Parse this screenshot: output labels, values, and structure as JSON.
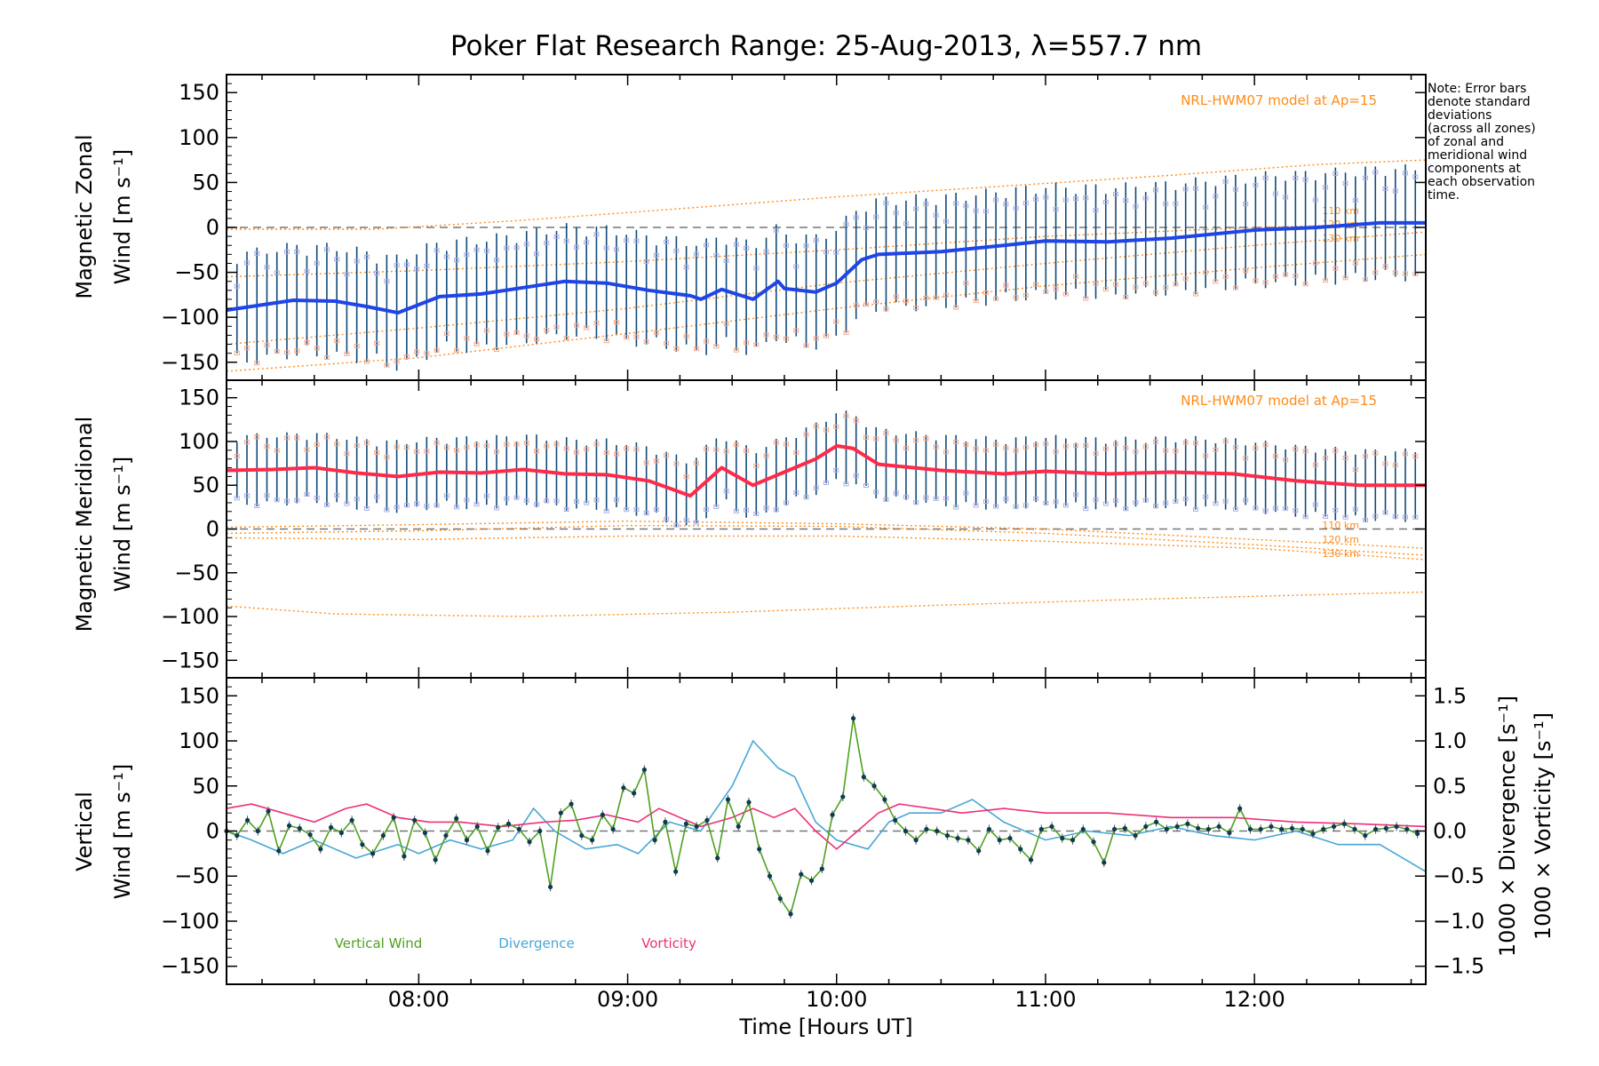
{
  "colors": {
    "zonal_mean": "#1f45e6",
    "meridional_mean": "#ff2a4a",
    "error_bar": "#124a78",
    "model": "#ff8c1a",
    "model_label": "#ff8c1a",
    "zone_scatter_high": "#f7a98d",
    "zone_scatter_low": "#a9aee8",
    "vertical": "#4ea020",
    "divergence": "#46a7d6",
    "vorticity": "#ef2f79",
    "zero_line": "#777777",
    "point": "#0d3b4f"
  },
  "chart_data": {
    "type": "line",
    "title": "Poker Flat Research Range: 25-Aug-2013, λ=557.7 nm",
    "xlabel": "Time [Hours UT]",
    "xlim": [
      7.08,
      12.82
    ],
    "xticks": [
      8,
      9,
      10,
      11,
      12
    ],
    "xtick_labels": [
      "08:00",
      "09:00",
      "10:00",
      "11:00",
      "12:00"
    ],
    "note": [
      "Note: Error bars",
      "denote standard",
      "deviations",
      "(across all zones)",
      "of zonal and",
      "meridional wind",
      "components at",
      "each observation",
      "time."
    ],
    "panels": [
      {
        "name": "zonal",
        "ylabel_line1": "Magnetic Zonal",
        "ylabel_line2": "Wind [m s⁻¹]",
        "ylim": [
          -170,
          170
        ],
        "yticks": [
          -150,
          -100,
          -50,
          0,
          50,
          100,
          150
        ],
        "ytick_labels": [
          "−150",
          "−100",
          "−50",
          "0",
          "50",
          "100",
          "150"
        ],
        "model_label": "NRL-HWM07 model at Ap=15",
        "model_altitudes": [
          "110 km",
          "120 km",
          "130 km"
        ],
        "error_bar_sd": 62,
        "mean_series": {
          "name": "Zonal wind",
          "x": [
            7.08,
            7.4,
            7.6,
            7.75,
            7.9,
            8.1,
            8.3,
            8.5,
            8.7,
            8.9,
            9.1,
            9.3,
            9.35,
            9.45,
            9.6,
            9.72,
            9.75,
            9.9,
            10.0,
            10.12,
            10.2,
            10.5,
            10.8,
            11.0,
            11.3,
            11.6,
            12.0,
            12.3,
            12.6,
            12.82
          ],
          "values": [
            -92,
            -81,
            -82,
            -88,
            -95,
            -77,
            -74,
            -67,
            -60,
            -62,
            -70,
            -76,
            -80,
            -69,
            -80,
            -60,
            -68,
            -72,
            -62,
            -36,
            -30,
            -27,
            -20,
            -15,
            -16,
            -12,
            -3,
            0,
            5,
            5
          ]
        },
        "model_series": [
          {
            "name": "model-1",
            "x": [
              7.08,
              7.8,
              8.5,
              9.2,
              10.0,
              10.8,
              11.6,
              12.3,
              12.82
            ],
            "values": [
              -2,
              -2,
              8,
              20,
              34,
              46,
              58,
              70,
              75
            ]
          },
          {
            "name": "110 km",
            "x": [
              7.08,
              8.0,
              9.0,
              10.0,
              11.0,
              12.0,
              12.82
            ],
            "values": [
              -55,
              -48,
              -38,
              -25,
              -10,
              0,
              5
            ]
          },
          {
            "name": "120 km",
            "x": [
              7.08,
              8.0,
              9.0,
              10.0,
              11.0,
              12.0,
              12.82
            ],
            "values": [
              -130,
              -112,
              -90,
              -62,
              -40,
              -20,
              -5
            ]
          },
          {
            "name": "130 km",
            "x": [
              7.08,
              8.0,
              9.0,
              10.0,
              11.0,
              12.0,
              12.82
            ],
            "values": [
              -160,
              -145,
              -118,
              -90,
              -65,
              -45,
              -30
            ]
          }
        ]
      },
      {
        "name": "meridional",
        "ylabel_line1": "Magnetic Meridional",
        "ylabel_line2": "Wind [m s⁻¹]",
        "ylim": [
          -170,
          170
        ],
        "yticks": [
          -150,
          -100,
          -50,
          0,
          50,
          100,
          150
        ],
        "ytick_labels": [
          "−150",
          "−100",
          "−50",
          "0",
          "50",
          "100",
          "150"
        ],
        "model_label": "NRL-HWM07 model at Ap=15",
        "model_altitudes": [
          "110 km",
          "120 km",
          "130 km"
        ],
        "error_bar_sd": 40,
        "mean_series": {
          "name": "Meridional wind",
          "x": [
            7.08,
            7.3,
            7.5,
            7.7,
            7.9,
            8.1,
            8.3,
            8.5,
            8.7,
            8.9,
            9.1,
            9.3,
            9.45,
            9.6,
            9.72,
            9.8,
            9.9,
            10.0,
            10.08,
            10.2,
            10.5,
            10.8,
            11.0,
            11.3,
            11.6,
            11.9,
            12.2,
            12.5,
            12.82
          ],
          "values": [
            67,
            68,
            70,
            64,
            60,
            65,
            64,
            68,
            63,
            62,
            55,
            38,
            70,
            50,
            62,
            70,
            80,
            95,
            92,
            74,
            67,
            63,
            66,
            63,
            65,
            63,
            55,
            50,
            50
          ]
        },
        "model_series": [
          {
            "name": "model-1",
            "x": [
              7.08,
              8.0,
              9.0,
              10.0,
              11.0,
              12.0,
              12.82
            ],
            "values": [
              2,
              5,
              9,
              6,
              0,
              -12,
              -22
            ]
          },
          {
            "name": "110 km",
            "x": [
              7.08,
              8.0,
              9.0,
              10.0,
              11.0,
              12.0,
              12.82
            ],
            "values": [
              -5,
              -2,
              4,
              3,
              -5,
              -18,
              -30
            ]
          },
          {
            "name": "120 km",
            "x": [
              7.08,
              8.0,
              9.0,
              10.0,
              11.0,
              12.0,
              12.82
            ],
            "values": [
              -10,
              -12,
              -8,
              -8,
              -14,
              -22,
              -35
            ]
          },
          {
            "name": "130 km",
            "x": [
              7.08,
              7.6,
              8.5,
              9.5,
              10.5,
              11.5,
              12.82
            ],
            "values": [
              -88,
              -97,
              -100,
              -95,
              -87,
              -80,
              -72
            ]
          }
        ]
      },
      {
        "name": "vertical",
        "ylabel_line1": "Vertical",
        "ylabel_line2": "Wind [m s⁻¹]",
        "ylim": [
          -170,
          170
        ],
        "yticks": [
          -150,
          -100,
          -50,
          0,
          50,
          100,
          150
        ],
        "ytick_labels": [
          "−150",
          "−100",
          "−50",
          "0",
          "50",
          "100",
          "150"
        ],
        "y2lim": [
          -1.7,
          1.7
        ],
        "y2ticks": [
          -1.5,
          -1.0,
          -0.5,
          0.0,
          0.5,
          1.0,
          1.5
        ],
        "y2tick_labels": [
          "−1.5",
          "−1.0",
          "−0.5",
          "0.0",
          "0.5",
          "1.0",
          "1.5"
        ],
        "y2label_divergence": "1000 × Divergence [s⁻¹]",
        "y2label_vorticity": "1000 × Vorticity [s⁻¹]",
        "legend": [
          "Vertical Wind",
          "Divergence",
          "Vorticity"
        ],
        "vertical_wind": {
          "x": [
            7.08,
            7.13,
            7.18,
            7.23,
            7.28,
            7.33,
            7.38,
            7.43,
            7.48,
            7.53,
            7.58,
            7.63,
            7.68,
            7.73,
            7.78,
            7.83,
            7.88,
            7.93,
            7.98,
            8.03,
            8.08,
            8.13,
            8.18,
            8.23,
            8.28,
            8.33,
            8.38,
            8.43,
            8.48,
            8.53,
            8.58,
            8.63,
            8.68,
            8.73,
            8.78,
            8.83,
            8.88,
            8.93,
            8.98,
            9.03,
            9.08,
            9.13,
            9.18,
            9.23,
            9.28,
            9.33,
            9.38,
            9.43,
            9.48,
            9.53,
            9.58,
            9.63,
            9.68,
            9.73,
            9.78,
            9.83,
            9.88,
            9.93,
            9.98,
            10.03,
            10.08,
            10.13,
            10.18,
            10.23,
            10.28,
            10.33,
            10.38,
            10.43,
            10.48,
            10.53,
            10.58,
            10.63,
            10.68,
            10.73,
            10.78,
            10.83,
            10.88,
            10.93,
            10.98,
            11.03,
            11.08,
            11.13,
            11.18,
            11.23,
            11.28,
            11.33,
            11.38,
            11.43,
            11.48,
            11.53,
            11.58,
            11.63,
            11.68,
            11.73,
            11.78,
            11.83,
            11.88,
            11.93,
            11.98,
            12.03,
            12.08,
            12.13,
            12.18,
            12.23,
            12.28,
            12.33,
            12.38,
            12.43,
            12.48,
            12.53,
            12.58,
            12.63,
            12.68,
            12.73,
            12.78
          ],
          "values": [
            0,
            -5,
            12,
            0,
            22,
            -22,
            6,
            3,
            -4,
            -20,
            4,
            -2,
            12,
            -15,
            -25,
            -5,
            15,
            -28,
            12,
            -2,
            -32,
            -5,
            14,
            -10,
            5,
            -22,
            4,
            8,
            2,
            -12,
            0,
            -62,
            20,
            30,
            -5,
            -10,
            18,
            2,
            48,
            42,
            68,
            -10,
            10,
            -45,
            8,
            5,
            12,
            -30,
            35,
            5,
            32,
            -20,
            -50,
            -75,
            -92,
            -48,
            -55,
            -42,
            18,
            38,
            125,
            60,
            50,
            35,
            12,
            0,
            -10,
            2,
            0,
            -5,
            -8,
            -10,
            -22,
            2,
            -10,
            -8,
            -20,
            -32,
            2,
            5,
            -8,
            -10,
            2,
            -12,
            -35,
            2,
            3,
            -5,
            5,
            10,
            2,
            5,
            8,
            3,
            2,
            5,
            -2,
            25,
            2,
            2,
            5,
            2,
            3,
            2,
            -3,
            2,
            5,
            8,
            2,
            -5,
            2,
            3,
            5,
            2,
            -3
          ]
        },
        "divergence": {
          "x": [
            7.08,
            7.2,
            7.35,
            7.5,
            7.6,
            7.7,
            7.9,
            8.0,
            8.15,
            8.3,
            8.45,
            8.55,
            8.65,
            8.8,
            8.95,
            9.05,
            9.2,
            9.35,
            9.5,
            9.6,
            9.72,
            9.8,
            9.9,
            10.0,
            10.15,
            10.25,
            10.35,
            10.5,
            10.65,
            10.8,
            11.0,
            11.2,
            11.4,
            11.6,
            11.8,
            12.0,
            12.2,
            12.4,
            12.6,
            12.82
          ],
          "values": [
            0.0,
            -0.1,
            -0.25,
            -0.1,
            -0.2,
            -0.3,
            -0.15,
            -0.25,
            -0.1,
            -0.2,
            -0.1,
            0.25,
            0.0,
            -0.2,
            -0.15,
            -0.25,
            0.1,
            0.0,
            0.5,
            1.0,
            0.7,
            0.6,
            0.1,
            -0.1,
            -0.2,
            0.1,
            0.2,
            0.2,
            0.35,
            0.1,
            -0.1,
            0.0,
            -0.05,
            0.05,
            -0.05,
            -0.1,
            0.0,
            -0.15,
            -0.15,
            -0.45
          ]
        },
        "vorticity": {
          "x": [
            7.08,
            7.2,
            7.35,
            7.5,
            7.65,
            7.75,
            7.9,
            8.05,
            8.2,
            8.4,
            8.6,
            8.75,
            8.9,
            9.05,
            9.15,
            9.25,
            9.35,
            9.5,
            9.6,
            9.7,
            9.8,
            9.9,
            10.0,
            10.1,
            10.2,
            10.3,
            10.45,
            10.6,
            10.8,
            11.0,
            11.3,
            11.6,
            11.9,
            12.2,
            12.5,
            12.82
          ],
          "values": [
            0.25,
            0.3,
            0.2,
            0.1,
            0.25,
            0.3,
            0.15,
            0.1,
            0.1,
            0.05,
            0.1,
            0.12,
            0.18,
            0.1,
            0.25,
            0.15,
            0.05,
            0.15,
            0.25,
            0.15,
            0.25,
            0.0,
            -0.2,
            0.0,
            0.2,
            0.3,
            0.25,
            0.2,
            0.25,
            0.2,
            0.2,
            0.15,
            0.15,
            0.1,
            0.08,
            0.05
          ]
        }
      }
    ]
  }
}
